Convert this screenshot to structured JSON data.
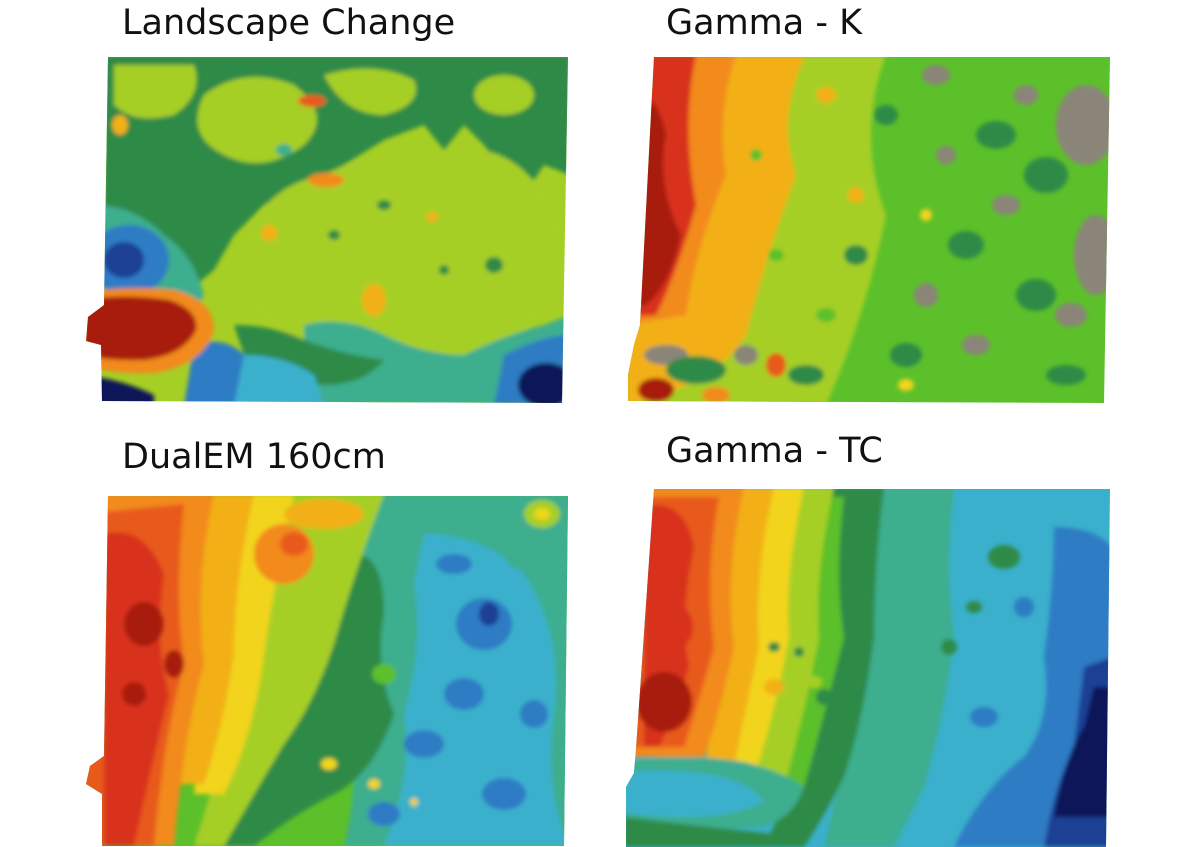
{
  "figure": {
    "panels": [
      {
        "id": "landscape-change",
        "title": "Landscape Change"
      },
      {
        "id": "gamma-k",
        "title": "Gamma - K"
      },
      {
        "id": "dualem-160cm",
        "title": "DualEM 160cm"
      },
      {
        "id": "gamma-tc",
        "title": "Gamma - TC"
      }
    ]
  },
  "colors": {
    "dark_red": "#a81a0c",
    "red": "#d8321a",
    "red_orange": "#e85a1c",
    "orange": "#f28a1e",
    "amber": "#f2b019",
    "yellow": "#f2d41c",
    "yellow_green": "#a6cf25",
    "green": "#5cc02a",
    "dark_green": "#2e8a46",
    "teal": "#3cae8e",
    "cyan_blue": "#3ab0cc",
    "blue": "#2f7cc4",
    "dark_blue": "#1b3f94",
    "navy": "#0b1658",
    "gray": "#8a8578"
  }
}
